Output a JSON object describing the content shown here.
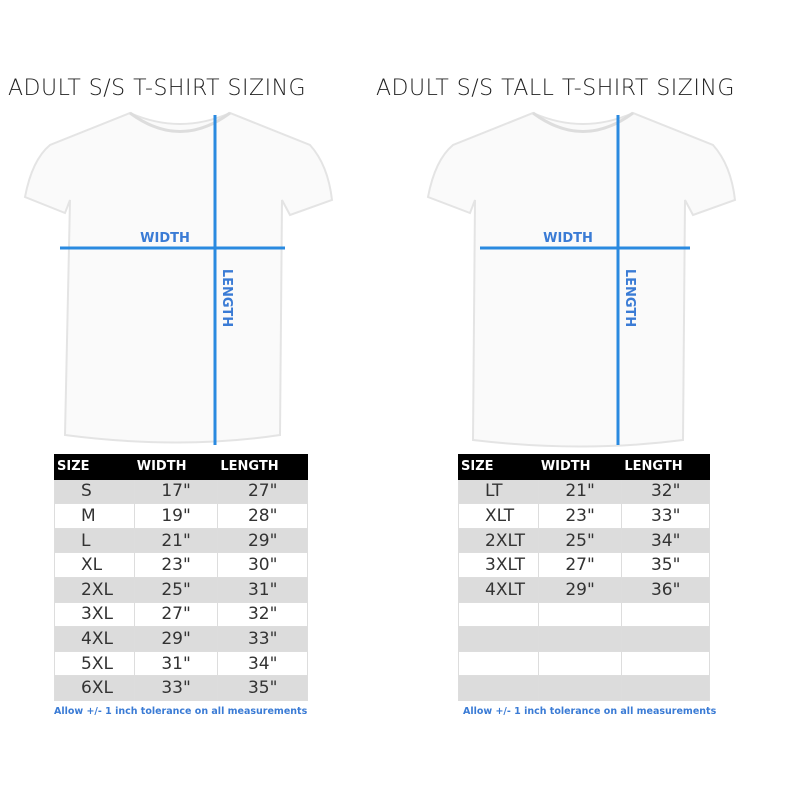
{
  "colors": {
    "measure_line": "#2a8ae0",
    "label": "#3a7bd5",
    "header_bg": "#000000",
    "stripe": "#dcdcdc"
  },
  "left": {
    "title": "ADULT S/S T-SHIRT SIZING",
    "width_label": "WIDTH",
    "length_label": "LENGTH",
    "headers": [
      "SIZE",
      "WIDTH",
      "LENGTH"
    ],
    "rows": [
      [
        "S",
        "17\"",
        "27\""
      ],
      [
        "M",
        "19\"",
        "28\""
      ],
      [
        "L",
        "21\"",
        "29\""
      ],
      [
        "XL",
        "23\"",
        "30\""
      ],
      [
        "2XL",
        "25\"",
        "31\""
      ],
      [
        "3XL",
        "27\"",
        "32\""
      ],
      [
        "4XL",
        "29\"",
        "33\""
      ],
      [
        "5XL",
        "31\"",
        "34\""
      ],
      [
        "6XL",
        "33\"",
        "35\""
      ]
    ],
    "note": "Allow +/- 1 inch tolerance on all measurements"
  },
  "right": {
    "title": "ADULT S/S TALL T-SHIRT SIZING",
    "width_label": "WIDTH",
    "length_label": "LENGTH",
    "headers": [
      "SIZE",
      "WIDTH",
      "LENGTH"
    ],
    "rows": [
      [
        "LT",
        "21\"",
        "32\""
      ],
      [
        "XLT",
        "23\"",
        "33\""
      ],
      [
        "2XLT",
        "25\"",
        "34\""
      ],
      [
        "3XLT",
        "27\"",
        "35\""
      ],
      [
        "4XLT",
        "29\"",
        "36\""
      ],
      [
        "",
        "",
        ""
      ],
      [
        "",
        "",
        ""
      ],
      [
        "",
        "",
        ""
      ],
      [
        "",
        "",
        ""
      ]
    ],
    "note": "Allow +/- 1 inch tolerance on all measurements"
  }
}
